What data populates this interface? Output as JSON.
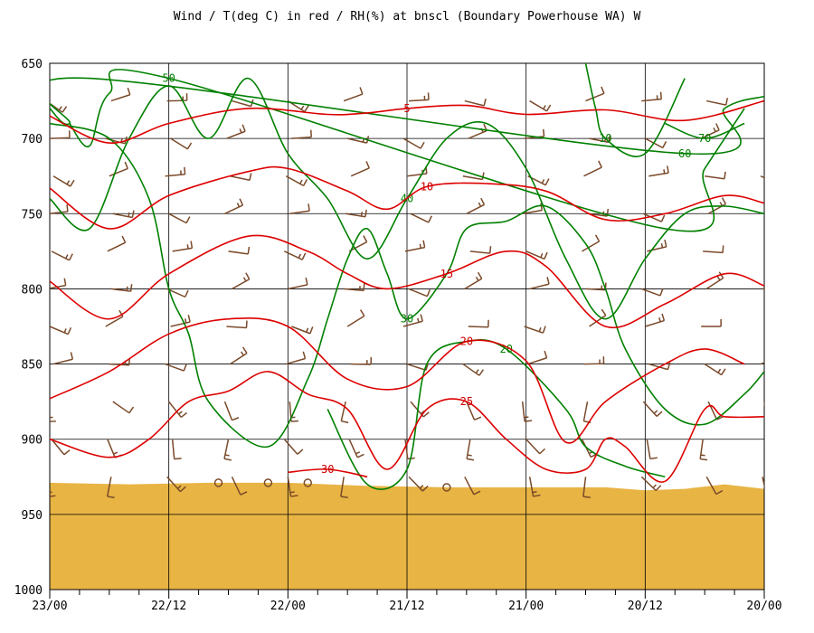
{
  "chart_data": {
    "type": "time-height cross-section",
    "title": "Wind / T(deg C) in red / RH(%) at bnscl (Boundary Powerhouse WA)  W",
    "y_axis": {
      "quantity": "pressure (hPa)",
      "range": [
        650,
        1000
      ],
      "ticks": [
        "650",
        "700",
        "750",
        "800",
        "850",
        "900",
        "950",
        "1000"
      ]
    },
    "x_axis": {
      "quantity": "valid time (day/hour)",
      "order": "descending left to right",
      "ticks": [
        "23/00",
        "22/12",
        "22/00",
        "21/12",
        "21/00",
        "20/12",
        "20/00"
      ],
      "tick_times_h": [
        72,
        60,
        48,
        36,
        24,
        12,
        0
      ]
    },
    "grid": true,
    "colors": {
      "temperature": "#dd0000",
      "rh": "#008000",
      "wind": "#7a4a2a",
      "terrain": "#e8b444"
    },
    "terrain": {
      "surface_pressure": [
        [
          72,
          929
        ],
        [
          64,
          930
        ],
        [
          56,
          929
        ],
        [
          48,
          929
        ],
        [
          40,
          931
        ],
        [
          32,
          932
        ],
        [
          24,
          932
        ],
        [
          16,
          932
        ],
        [
          12,
          934
        ],
        [
          8,
          933
        ],
        [
          4,
          930
        ],
        [
          0,
          933
        ]
      ]
    },
    "temperature_contours": [
      {
        "value": 5,
        "label": "5",
        "points": [
          [
            72,
            685
          ],
          [
            66,
            703
          ],
          [
            60,
            690
          ],
          [
            52,
            680
          ],
          [
            44,
            684
          ],
          [
            40,
            683
          ],
          [
            36,
            680
          ],
          [
            30,
            678
          ],
          [
            24,
            684
          ],
          [
            16,
            681
          ],
          [
            8,
            688
          ],
          [
            0,
            675
          ]
        ]
      },
      {
        "value": 10,
        "label": "10",
        "points": [
          [
            72,
            733
          ],
          [
            66,
            760
          ],
          [
            60,
            738
          ],
          [
            52,
            722
          ],
          [
            48,
            720
          ],
          [
            42,
            735
          ],
          [
            38,
            747
          ],
          [
            34,
            732
          ],
          [
            28,
            730
          ],
          [
            22,
            735
          ],
          [
            16,
            754
          ],
          [
            10,
            750
          ],
          [
            4,
            738
          ],
          [
            0,
            743
          ]
        ]
      },
      {
        "value": 15,
        "label": "15",
        "points": [
          [
            72,
            795
          ],
          [
            66,
            820
          ],
          [
            60,
            790
          ],
          [
            52,
            765
          ],
          [
            46,
            775
          ],
          [
            42,
            790
          ],
          [
            38,
            800
          ],
          [
            32,
            790
          ],
          [
            26,
            775
          ],
          [
            22,
            785
          ],
          [
            16,
            825
          ],
          [
            10,
            810
          ],
          [
            4,
            790
          ],
          [
            0,
            798
          ]
        ]
      },
      {
        "value": 20,
        "label": "20",
        "points": [
          [
            72,
            873
          ],
          [
            66,
            855
          ],
          [
            60,
            830
          ],
          [
            54,
            820
          ],
          [
            48,
            825
          ],
          [
            42,
            860
          ],
          [
            36,
            865
          ],
          [
            30,
            835
          ],
          [
            24,
            848
          ],
          [
            20,
            902
          ],
          [
            16,
            875
          ],
          [
            10,
            850
          ],
          [
            6,
            840
          ],
          [
            2,
            850
          ]
        ]
      },
      {
        "value": 25,
        "label": "25",
        "points": [
          [
            72,
            900
          ],
          [
            66,
            912
          ],
          [
            62,
            900
          ],
          [
            58,
            875
          ],
          [
            54,
            868
          ],
          [
            50,
            855
          ],
          [
            46,
            870
          ],
          [
            42,
            880
          ],
          [
            38,
            920
          ],
          [
            34,
            880
          ],
          [
            30,
            875
          ],
          [
            26,
            900
          ],
          [
            22,
            920
          ],
          [
            18,
            920
          ],
          [
            16,
            900
          ],
          [
            14,
            905
          ],
          [
            10,
            928
          ],
          [
            6,
            880
          ],
          [
            4,
            885
          ],
          [
            0,
            885
          ]
        ]
      },
      {
        "value": 30,
        "label": "30",
        "points": [
          [
            48,
            922
          ],
          [
            44,
            920
          ],
          [
            40,
            925
          ]
        ]
      }
    ],
    "rh_contours": [
      {
        "value": 10,
        "label": "10",
        "points": [
          [
            18,
            650
          ],
          [
            17,
            680
          ],
          [
            16,
            700
          ],
          [
            12,
            710
          ],
          [
            8,
            660
          ]
        ]
      },
      {
        "value": 20,
        "label": "20",
        "points": [
          [
            44,
            880
          ],
          [
            40,
            930
          ],
          [
            36,
            920
          ],
          [
            34,
            850
          ],
          [
            30,
            835
          ],
          [
            26,
            840
          ],
          [
            20,
            880
          ],
          [
            18,
            905
          ],
          [
            14,
            918
          ],
          [
            10,
            925
          ]
        ]
      },
      {
        "value": 30,
        "label": "30",
        "points": [
          [
            72,
            690
          ],
          [
            66,
            700
          ],
          [
            62,
            740
          ],
          [
            60,
            800
          ],
          [
            58,
            830
          ],
          [
            56,
            875
          ],
          [
            50,
            905
          ],
          [
            46,
            860
          ],
          [
            44,
            820
          ],
          [
            42,
            780
          ],
          [
            40,
            760
          ],
          [
            38,
            790
          ],
          [
            36,
            820
          ],
          [
            32,
            790
          ],
          [
            30,
            760
          ],
          [
            26,
            755
          ],
          [
            22,
            745
          ],
          [
            18,
            770
          ],
          [
            16,
            800
          ],
          [
            14,
            840
          ],
          [
            10,
            880
          ],
          [
            6,
            890
          ],
          [
            2,
            870
          ],
          [
            0,
            855
          ]
        ]
      },
      {
        "value": 40,
        "label": "40",
        "points": [
          [
            72,
            740
          ],
          [
            68,
            760
          ],
          [
            64,
            700
          ],
          [
            60,
            665
          ],
          [
            56,
            700
          ],
          [
            52,
            660
          ],
          [
            48,
            710
          ],
          [
            44,
            740
          ],
          [
            40,
            780
          ],
          [
            36,
            740
          ],
          [
            32,
            700
          ],
          [
            28,
            690
          ],
          [
            24,
            720
          ],
          [
            20,
            780
          ],
          [
            16,
            820
          ],
          [
            12,
            780
          ],
          [
            8,
            750
          ],
          [
            4,
            745
          ],
          [
            0,
            750
          ]
        ]
      },
      {
        "value": 50,
        "label": "50",
        "points": [
          [
            70,
            690
          ],
          [
            68,
            705
          ],
          [
            66,
            670
          ],
          [
            60,
            660
          ],
          [
            10,
            760
          ],
          [
            6,
            720
          ],
          [
            2,
            680
          ]
        ]
      },
      {
        "value": 60,
        "label": "60",
        "points": [
          [
            72,
            680
          ],
          [
            70,
            690
          ],
          [
            68,
            660
          ],
          [
            8,
            710
          ],
          [
            4,
            680
          ],
          [
            0,
            672
          ]
        ]
      },
      {
        "value": 70,
        "label": "70",
        "points": [
          [
            10,
            690
          ],
          [
            6,
            700
          ],
          [
            2,
            690
          ]
        ]
      }
    ],
    "wind": {
      "units": "kt",
      "barb_rows_hpa": [
        675,
        700,
        725,
        750,
        775,
        800,
        825,
        850,
        875,
        900,
        925,
        950
      ],
      "barb_columns_h": [
        72,
        66,
        60,
        54,
        48,
        42,
        36,
        30,
        24,
        18,
        12,
        6,
        0
      ],
      "low_level_flow": "calm circles near surface around 22/00–21/12",
      "mid_level_direction": "westerly",
      "typical_speed_kt": "5–20"
    }
  }
}
